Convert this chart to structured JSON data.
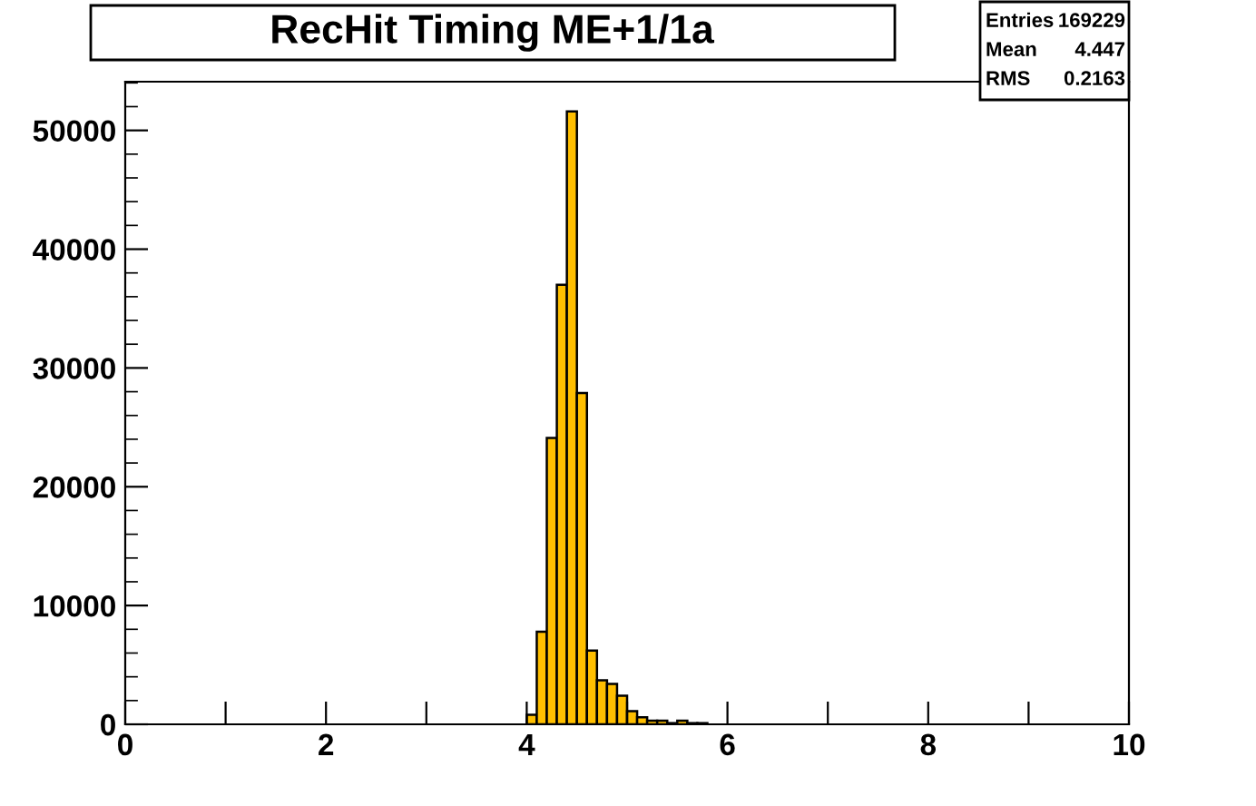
{
  "chart_data": {
    "type": "histogram",
    "title": "RecHit Timing ME+1/1a",
    "bins": [
      0,
      0.1,
      0.2,
      0.3,
      0.4,
      0.5,
      0.6,
      0.7,
      0.8,
      0.9,
      1,
      1.1,
      1.2,
      1.3,
      1.4,
      1.5,
      1.6,
      1.7,
      1.8,
      1.9,
      2,
      2.1,
      2.2,
      2.3,
      2.4,
      2.5,
      2.6,
      2.7,
      2.8,
      2.9,
      3,
      3.1,
      3.2,
      3.3,
      3.4,
      3.5,
      3.6,
      3.7,
      3.8,
      3.9,
      4,
      4.1,
      4.2,
      4.3,
      4.4,
      4.5,
      4.6,
      4.7,
      4.8,
      4.9,
      5,
      5.1,
      5.2,
      5.3,
      5.4,
      5.5,
      5.6,
      5.7,
      5.8,
      5.9,
      6,
      6.1,
      6.2,
      6.3,
      6.4,
      6.5,
      6.6,
      6.7,
      6.8,
      6.9,
      7,
      7.1,
      7.2,
      7.3,
      7.4,
      7.5,
      7.6,
      7.7,
      7.8,
      7.9,
      8,
      8.1,
      8.2,
      8.3,
      8.4,
      8.5,
      8.6,
      8.7,
      8.8,
      8.9,
      9,
      9.1,
      9.2,
      9.3,
      9.4,
      9.5,
      9.6,
      9.7,
      9.8,
      9.9,
      10
    ],
    "values": [
      0,
      0,
      0,
      0,
      0,
      0,
      0,
      0,
      0,
      0,
      0,
      0,
      0,
      0,
      0,
      0,
      0,
      0,
      0,
      0,
      0,
      0,
      0,
      0,
      0,
      0,
      0,
      0,
      0,
      0,
      0,
      0,
      0,
      0,
      0,
      0,
      0,
      0,
      0,
      0,
      800,
      7800,
      24100,
      37000,
      51600,
      27900,
      6200,
      3700,
      3400,
      2400,
      1100,
      600,
      300,
      300,
      100,
      300,
      100,
      100,
      0,
      0,
      0,
      0,
      0,
      0,
      0,
      0,
      0,
      0,
      0,
      0,
      0,
      0,
      0,
      0,
      0,
      0,
      0,
      0,
      0,
      0,
      0,
      0,
      0,
      0,
      0,
      0,
      0,
      0,
      0,
      0,
      0,
      0,
      0,
      0,
      0,
      0,
      0,
      0,
      0,
      0
    ],
    "color": "#ffbf00",
    "xlim": [
      0,
      10
    ],
    "xticks": [
      0,
      {
        "value": 1,
        "label": null
      },
      2,
      {
        "value": 3,
        "label": null
      },
      4,
      {
        "value": 5,
        "label": null
      },
      6,
      {
        "value": 7,
        "label": null
      },
      8,
      {
        "value": 9,
        "label": null
      },
      10
    ],
    "ylim": [
      0,
      54100
    ],
    "yticks": [
      0,
      10000,
      20000,
      30000,
      40000,
      50000
    ],
    "grid": false,
    "legend": false,
    "annotations": [
      "Entries",
      "169229",
      "Mean",
      "4.447",
      "RMS",
      "0.2163"
    ]
  }
}
